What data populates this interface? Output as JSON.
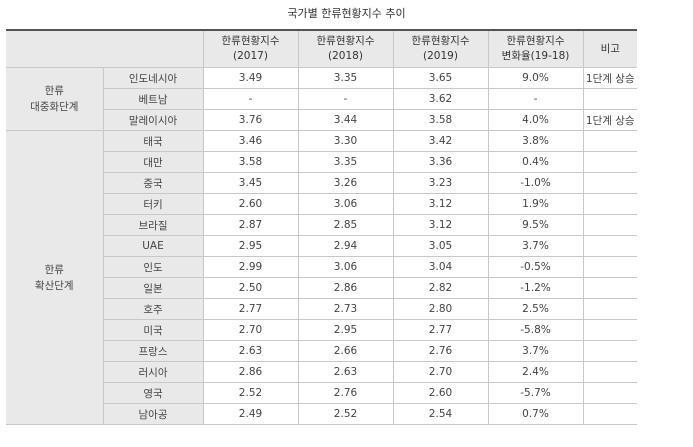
{
  "title": "국가별 한류현황지수 추이",
  "header": {
    "col_2017": [
      "한류현황지수",
      "(2017)"
    ],
    "col_2018": [
      "한류현황지수",
      "(2018)"
    ],
    "col_2019": [
      "한류현황지수",
      "(2019)"
    ],
    "col_change": [
      "한류현황지수",
      "변화율(19-18)"
    ],
    "col_note": "비고"
  },
  "groups": [
    {
      "label": [
        "한류",
        "대중화단계"
      ],
      "rows": [
        {
          "country": "인도네시아",
          "v2017": "3.49",
          "v2018": "3.35",
          "v2019": "3.65",
          "change": "9.0%",
          "note": "1단계 상승"
        },
        {
          "country": "베트남",
          "v2017": "-",
          "v2018": "-",
          "v2019": "3.62",
          "change": "-",
          "note": ""
        },
        {
          "country": "말레이시아",
          "v2017": "3.76",
          "v2018": "3.44",
          "v2019": "3.58",
          "change": "4.0%",
          "note": "1단계 상승"
        }
      ]
    },
    {
      "label": [
        "한류",
        "확산단계"
      ],
      "rows": [
        {
          "country": "태국",
          "v2017": "3.46",
          "v2018": "3.30",
          "v2019": "3.42",
          "change": "3.8%",
          "note": ""
        },
        {
          "country": "대만",
          "v2017": "3.58",
          "v2018": "3.35",
          "v2019": "3.36",
          "change": "0.4%",
          "note": ""
        },
        {
          "country": "중국",
          "v2017": "3.45",
          "v2018": "3.26",
          "v2019": "3.23",
          "change": "-1.0%",
          "note": ""
        },
        {
          "country": "터키",
          "v2017": "2.60",
          "v2018": "3.06",
          "v2019": "3.12",
          "change": "1.9%",
          "note": ""
        },
        {
          "country": "브라질",
          "v2017": "2.87",
          "v2018": "2.85",
          "v2019": "3.12",
          "change": "9.5%",
          "note": ""
        },
        {
          "country": "UAE",
          "v2017": "2.95",
          "v2018": "2.94",
          "v2019": "3.05",
          "change": "3.7%",
          "note": ""
        },
        {
          "country": "인도",
          "v2017": "2.99",
          "v2018": "3.06",
          "v2019": "3.04",
          "change": "-0.5%",
          "note": ""
        },
        {
          "country": "일본",
          "v2017": "2.50",
          "v2018": "2.86",
          "v2019": "2.82",
          "change": "-1.2%",
          "note": ""
        },
        {
          "country": "호주",
          "v2017": "2.77",
          "v2018": "2.73",
          "v2019": "2.80",
          "change": "2.5%",
          "note": ""
        },
        {
          "country": "미국",
          "v2017": "2.70",
          "v2018": "2.95",
          "v2019": "2.77",
          "change": "-5.8%",
          "note": ""
        },
        {
          "country": "프랑스",
          "v2017": "2.63",
          "v2018": "2.66",
          "v2019": "2.76",
          "change": "3.7%",
          "note": ""
        },
        {
          "country": "러시아",
          "v2017": "2.86",
          "v2018": "2.63",
          "v2019": "2.70",
          "change": "2.4%",
          "note": ""
        },
        {
          "country": "영국",
          "v2017": "2.52",
          "v2018": "2.76",
          "v2019": "2.60",
          "change": "-5.7%",
          "note": ""
        },
        {
          "country": "남아공",
          "v2017": "2.49",
          "v2018": "2.52",
          "v2019": "2.54",
          "change": "0.7%",
          "note": ""
        }
      ]
    }
  ]
}
